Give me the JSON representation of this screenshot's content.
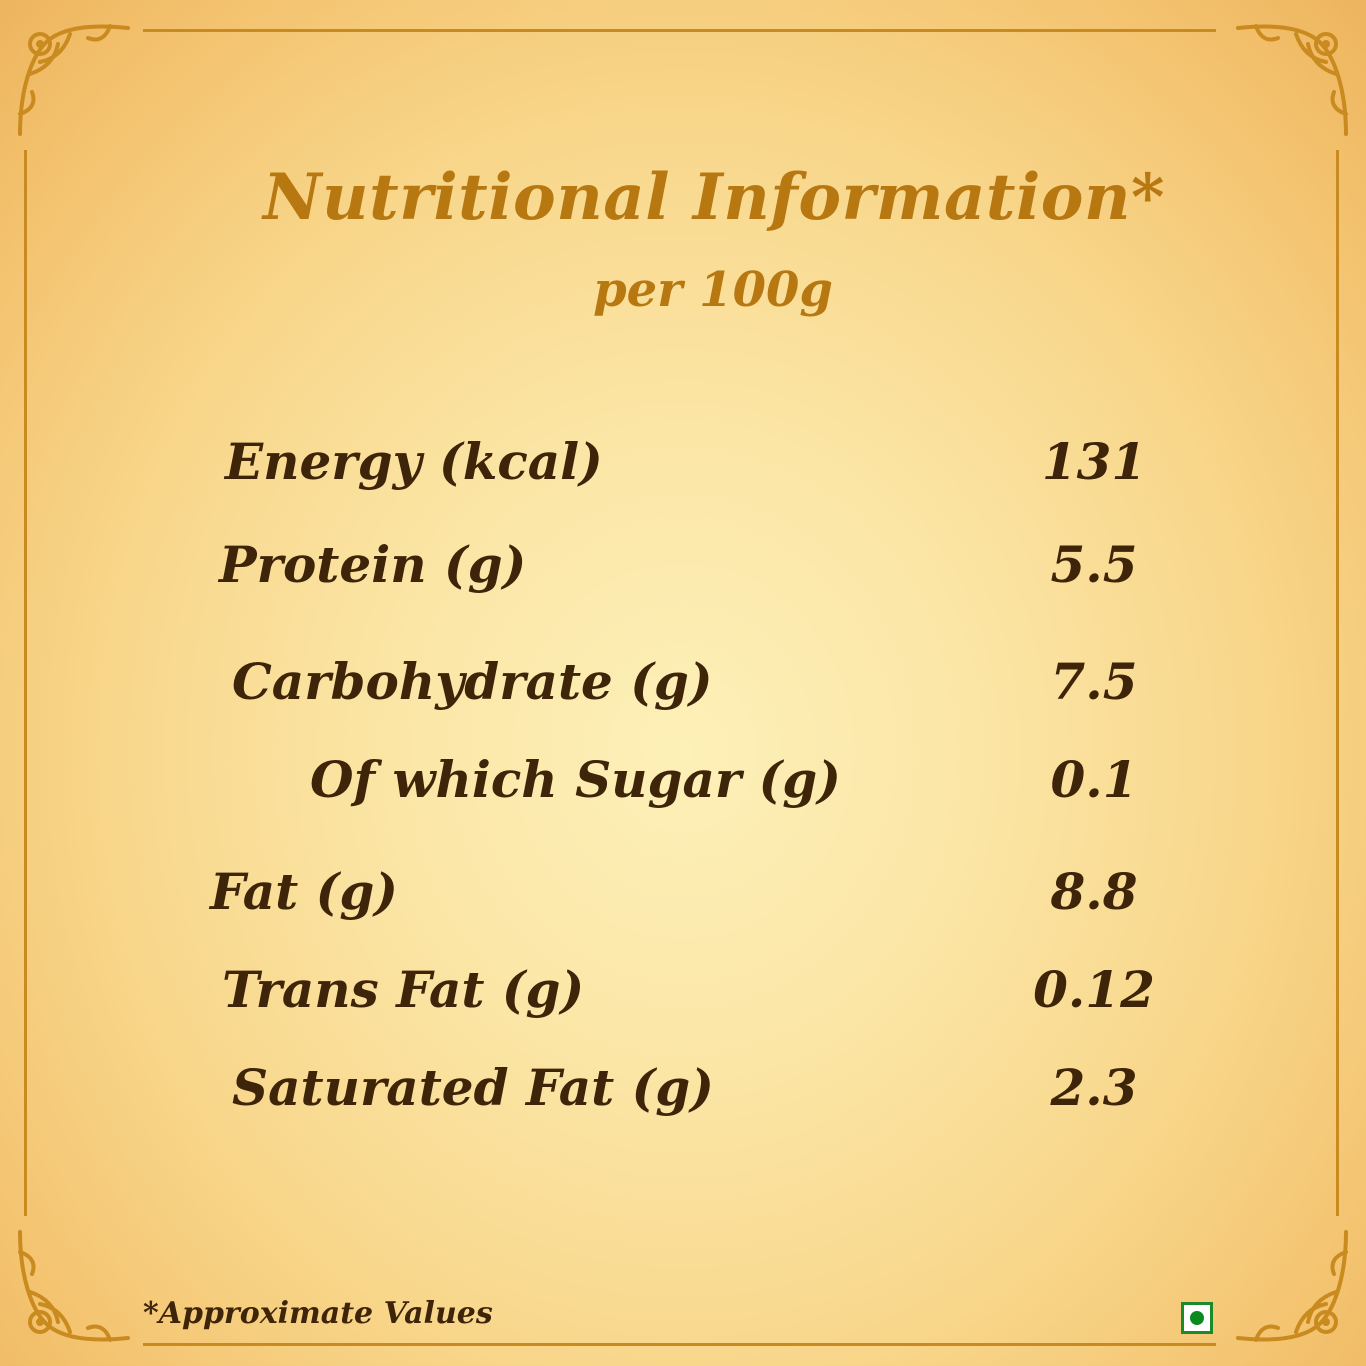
{
  "title": "Nutritional Information*",
  "subtitle": "per 100g",
  "nutrients": [
    {
      "label": "Energy (kcal)",
      "value": "131"
    },
    {
      "label": "Protein (g)",
      "value": "5.5"
    },
    {
      "label": "Carbohydrate (g)",
      "value": "7.5"
    },
    {
      "label": "Of which Sugar (g)",
      "value": "0.1"
    },
    {
      "label": "Fat (g)",
      "value": "8.8"
    },
    {
      "label": "Trans Fat (g)",
      "value": "0.12"
    },
    {
      "label": "Saturated Fat (g)",
      "value": "2.3"
    }
  ],
  "footnote": "*Approximate Values",
  "colors": {
    "heading": "#b87811",
    "text": "#3e2408",
    "frame": "#c98a1f",
    "veg_mark": "#0a8a1f"
  },
  "icons": {
    "corner_ornament": "ornate-corner-icon",
    "veg_symbol": "vegetarian-mark-icon"
  }
}
